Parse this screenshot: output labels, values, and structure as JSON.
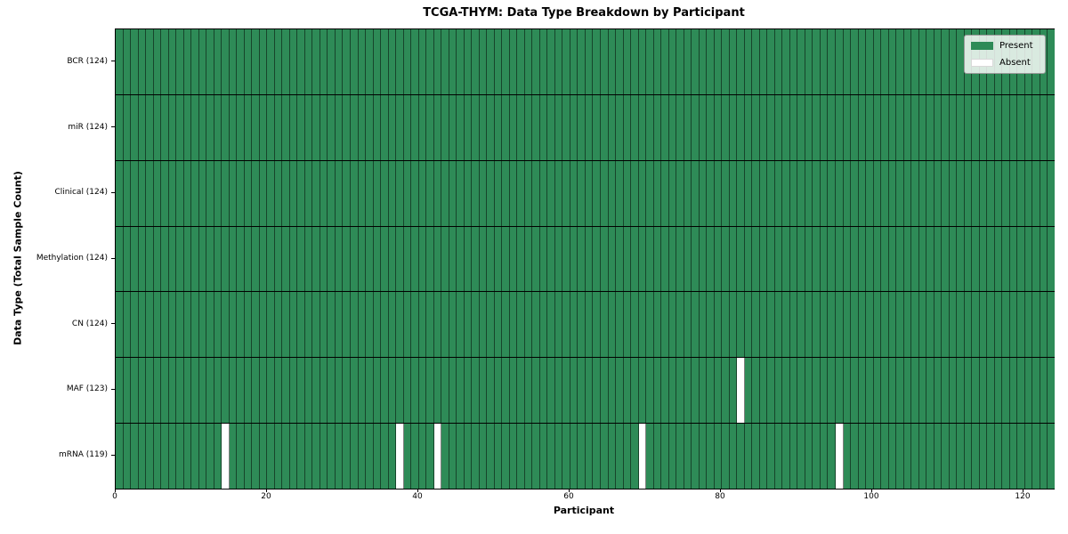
{
  "chart_data": {
    "type": "heatmap",
    "title": "TCGA-THYM: Data Type Breakdown by Participant",
    "xlabel": "Participant",
    "ylabel": "Data Type (Total Sample Count)",
    "n_participants": 124,
    "xlim": [
      0,
      124
    ],
    "x_ticks": [
      0,
      20,
      40,
      60,
      80,
      100,
      120
    ],
    "grid": "cell-borders",
    "legend": [
      "Present",
      "Absent"
    ],
    "legend_position": "upper right",
    "colors": {
      "present": "#2e8b57",
      "absent": "#ffffff",
      "grid": "rgba(0,0,0,0.5)",
      "separator": "#000000"
    },
    "rows": [
      {
        "label": "BCR (124)",
        "data_type": "BCR",
        "present_count": 124,
        "absent_participants": []
      },
      {
        "label": "miR (124)",
        "data_type": "miR",
        "present_count": 124,
        "absent_participants": []
      },
      {
        "label": "Clinical (124)",
        "data_type": "Clinical",
        "present_count": 124,
        "absent_participants": []
      },
      {
        "label": "Methylation (124)",
        "data_type": "Methylation",
        "present_count": 124,
        "absent_participants": []
      },
      {
        "label": "CN (124)",
        "data_type": "CN",
        "present_count": 124,
        "absent_participants": []
      },
      {
        "label": "MAF (123)",
        "data_type": "MAF",
        "present_count": 123,
        "absent_participants": [
          82
        ]
      },
      {
        "label": "mRNA (119)",
        "data_type": "mRNA",
        "present_count": 119,
        "absent_participants": [
          14,
          37,
          42,
          69,
          95
        ]
      }
    ]
  }
}
